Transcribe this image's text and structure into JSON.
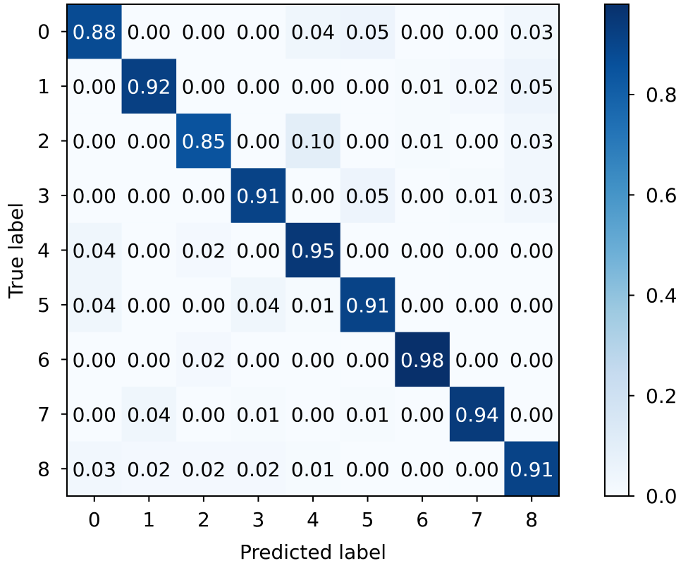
{
  "chart_data": {
    "type": "heatmap",
    "xlabel": "Predicted label",
    "ylabel": "True label",
    "x_categories": [
      "0",
      "1",
      "2",
      "3",
      "4",
      "5",
      "6",
      "7",
      "8"
    ],
    "y_categories": [
      "0",
      "1",
      "2",
      "3",
      "4",
      "5",
      "6",
      "7",
      "8"
    ],
    "matrix": [
      [
        "0.88",
        "0.00",
        "0.00",
        "0.00",
        "0.04",
        "0.05",
        "0.00",
        "0.00",
        "0.03"
      ],
      [
        "0.00",
        "0.92",
        "0.00",
        "0.00",
        "0.00",
        "0.00",
        "0.01",
        "0.02",
        "0.05"
      ],
      [
        "0.00",
        "0.00",
        "0.85",
        "0.00",
        "0.10",
        "0.00",
        "0.01",
        "0.00",
        "0.03"
      ],
      [
        "0.00",
        "0.00",
        "0.00",
        "0.91",
        "0.00",
        "0.05",
        "0.00",
        "0.01",
        "0.03"
      ],
      [
        "0.04",
        "0.00",
        "0.02",
        "0.00",
        "0.95",
        "0.00",
        "0.00",
        "0.00",
        "0.00"
      ],
      [
        "0.04",
        "0.00",
        "0.00",
        "0.04",
        "0.01",
        "0.91",
        "0.00",
        "0.00",
        "0.00"
      ],
      [
        "0.00",
        "0.00",
        "0.02",
        "0.00",
        "0.00",
        "0.00",
        "0.98",
        "0.00",
        "0.00"
      ],
      [
        "0.00",
        "0.04",
        "0.00",
        "0.01",
        "0.00",
        "0.01",
        "0.00",
        "0.94",
        "0.00"
      ],
      [
        "0.03",
        "0.02",
        "0.02",
        "0.02",
        "0.01",
        "0.00",
        "0.00",
        "0.00",
        "0.91"
      ]
    ],
    "colorbar": {
      "range": [
        0,
        0.98
      ],
      "ticks": [
        "0.0",
        "0.2",
        "0.4",
        "0.6",
        "0.8"
      ],
      "colormap": "Blues"
    },
    "colors": {
      "low": "#f7fbff",
      "high": "#08306b",
      "text_dark": "#000000",
      "text_light": "#ffffff"
    }
  }
}
